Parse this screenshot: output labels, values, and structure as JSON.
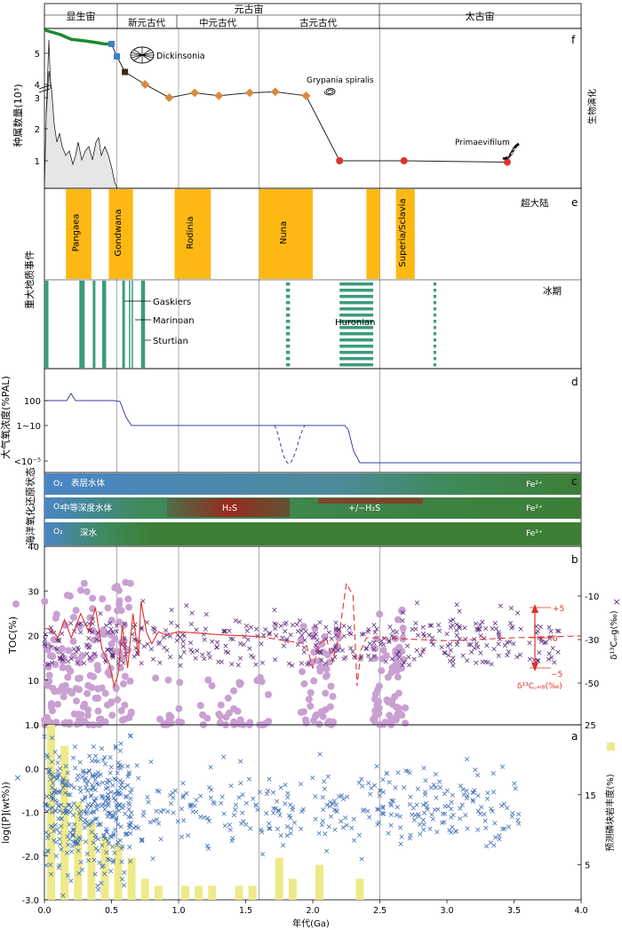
{
  "eon_header": {
    "eons": [
      {
        "label": "显生宙"
      },
      {
        "label": "元古宙"
      },
      {
        "label": "太古宙"
      }
    ],
    "eras": [
      {
        "label": "新元古代"
      },
      {
        "label": "中元古代"
      },
      {
        "label": "古元古代"
      }
    ]
  },
  "x_axis": {
    "label": "年代(Ga)",
    "min": 0.0,
    "max": 4.0,
    "ticks": [
      "0.0",
      "0.5",
      "1.0",
      "1.5",
      "2.0",
      "2.5",
      "3.0",
      "3.5",
      "4.0"
    ],
    "boundaries": [
      0.541,
      1.0,
      1.6,
      2.5
    ]
  },
  "panel_f": {
    "letter": "f",
    "ylabel": "种属数量(10³)",
    "side_label": "生物演化",
    "y_ticks": [
      "1",
      "2",
      "3",
      "4",
      "5"
    ],
    "annotations": [
      {
        "text": "Dickinsonia"
      },
      {
        "text": "Grypania spiralis"
      },
      {
        "text": "Primaevifilum"
      }
    ],
    "colors": {
      "phanero_line": "#1a8a2e",
      "blue": "#3f7fc6",
      "brown": "#d98b3a",
      "red": "#e0302c",
      "dark": "#3a2a1a"
    }
  },
  "panel_e": {
    "letter": "e",
    "ylabel": "重大地质事件",
    "supercontinent_title": "超大陆",
    "glaciation_title": "冰期",
    "supercontinents": [
      {
        "name": "Pangaea",
        "start": 0.16,
        "end": 0.35
      },
      {
        "name": "Gondwana",
        "start": 0.48,
        "end": 0.66
      },
      {
        "name": "Rodinia",
        "start": 0.97,
        "end": 1.24
      },
      {
        "name": "Nuna",
        "start": 1.6,
        "end": 2.0
      },
      {
        "name": "",
        "start": 2.4,
        "end": 2.5
      },
      {
        "name": "Superia/Sclavia",
        "start": 2.62,
        "end": 2.76
      }
    ],
    "glacial_labels": [
      "Gaskiers",
      "Marinoan",
      "Sturtian",
      "Huronian"
    ],
    "color_super": "#fdb813",
    "color_glacial": "#3b9b7e"
  },
  "panel_d": {
    "letter": "d",
    "ylabel": "大气氧浓度(%PAL)",
    "y_ticks": [
      "100",
      "1~10",
      "<10⁻⁵"
    ],
    "color": "#3b3fa6"
  },
  "panel_c": {
    "letter": "c",
    "ylabel": "海洋氧化还原状态",
    "layers": [
      {
        "name": "表层水体",
        "o2": "O₂",
        "fe": "Fe²⁺"
      },
      {
        "name": "中等深度水体",
        "o2": "O₂",
        "fe": "Fe²⁺",
        "h2s1": "H₂S",
        "h2s2": "+/−H₂S"
      },
      {
        "name": "深水",
        "o2": "O₂",
        "fe": "Fe²⁺"
      }
    ]
  },
  "panel_b": {
    "letter": "b",
    "ylabel_left": "TOC(%)",
    "ylabel_right": "δ¹³Cₒᵣg(‰)",
    "left_ticks": [
      "0",
      "10",
      "20",
      "30",
      "40"
    ],
    "right_ticks": [
      "-10",
      "-30",
      "-50"
    ],
    "carb_label": "δ¹³C꜀ₐᵣᵦ(‰)",
    "carb_ticks": [
      "+5",
      "0",
      "−5"
    ],
    "colors": {
      "toc": "#c9a0d2",
      "org": "#5b2a7a",
      "carb": "#e0302c"
    }
  },
  "panel_a": {
    "letter": "a",
    "ylabel_left": "log([P](wt%))",
    "ylabel_right": "预测磷块岩丰度(%)",
    "left_ticks": [
      "1.0",
      "0.0",
      "-1.0",
      "-2.0",
      "-3.0"
    ],
    "right_ticks": [
      "25",
      "15",
      "5"
    ],
    "colors": {
      "p": "#3f6fb6",
      "bar": "#eeea8a"
    }
  },
  "chart_data": {
    "type": "scatter",
    "panels": [
      {
        "id": "f",
        "series": [
          {
            "name": "Phanerozoic diversity",
            "x": [
              0.0,
              0.12,
              0.2,
              0.3,
              0.38,
              0.45,
              0.5
            ],
            "y": [
              5.75,
              5.6,
              5.45,
              5.4,
              5.35,
              5.3,
              5.3
            ]
          },
          {
            "name": "Precambrian diversity",
            "x": [
              0.5,
              0.54,
              0.6,
              0.75,
              0.93,
              1.12,
              1.3,
              1.53,
              1.72,
              1.95,
              2.2,
              2.68,
              3.45
            ],
            "y": [
              5.3,
              4.9,
              4.4,
              4.0,
              3.0,
              3.5,
              3.2,
              3.5,
              3.6,
              3.2,
              1.0,
              1.0,
              0.95
            ]
          }
        ]
      },
      {
        "id": "d",
        "series": [
          {
            "name": "Atmospheric O2",
            "x": [
              0.0,
              0.2,
              0.25,
              0.3,
              0.6,
              0.65,
              0.7,
              1.0,
              2.3,
              2.35,
              2.4,
              4.0
            ],
            "y": [
              100,
              100,
              110,
              100,
              95,
              10,
              3,
              1,
              1,
              0.5,
              1e-05,
              1e-05
            ]
          }
        ]
      },
      {
        "id": "a",
        "series": [
          {
            "name": "Phosphorite abundance",
            "x": [
              0.05,
              0.15,
              0.25,
              0.35,
              0.45,
              0.55,
              0.65,
              0.75,
              0.85,
              1.05,
              1.15,
              1.25,
              1.45,
              1.55,
              1.75,
              1.85,
              2.05,
              2.35
            ],
            "y": [
              25,
              22,
              14,
              11,
              9,
              8,
              6,
              3,
              2,
              2,
              2,
              2,
              2,
              2,
              6,
              3,
              5,
              3
            ]
          }
        ]
      }
    ]
  }
}
